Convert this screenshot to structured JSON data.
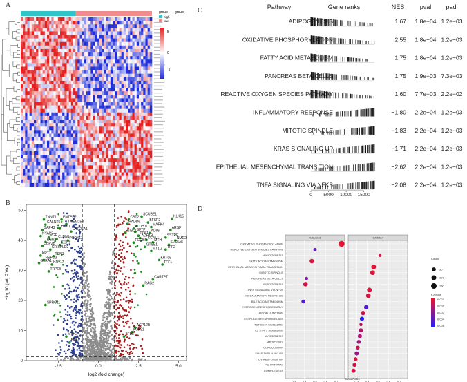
{
  "panels": {
    "A": "A",
    "B": "B",
    "C": "C",
    "D": "D"
  },
  "heatmap": {
    "legend_title": "group",
    "groups": [
      {
        "name": "high",
        "color": "#2EC4C8"
      },
      {
        "name": "low",
        "color": "#F08C8C"
      }
    ],
    "scale_ticks": [
      "5",
      "0",
      "-5"
    ],
    "colors": {
      "high": "#E32121",
      "mid": "#FFFFFF",
      "low": "#1F2DD8"
    }
  },
  "chart_data": [
    {
      "type": "table",
      "panel": "C",
      "headers": [
        "Pathway",
        "Gene ranks",
        "NES",
        "pval",
        "padj"
      ],
      "rows": [
        {
          "pathway": "ADIPOGENESIS",
          "nes": "1.67",
          "pval": "1.8e−04",
          "padj": "1.2e−03"
        },
        {
          "pathway": "OXIDATIVE PHOSPHORYLATION",
          "nes": "2.55",
          "pval": "1.8e−04",
          "padj": "1.2e−03"
        },
        {
          "pathway": "FATTY ACID METABOLISM",
          "nes": "1.75",
          "pval": "1.8e−04",
          "padj": "1.2e−03"
        },
        {
          "pathway": "PANCREAS BETA CELLS",
          "nes": "1.75",
          "pval": "1.9e−03",
          "padj": "7.3e−03"
        },
        {
          "pathway": "REACTIVE OXYGEN SPECIES PATHWAY",
          "nes": "1.60",
          "pval": "7.7e−03",
          "padj": "2.2e−02"
        },
        {
          "pathway": "INFLAMMATORY RESPONSE",
          "nes": "−1.80",
          "pval": "2.2e−04",
          "padj": "1.2e−03"
        },
        {
          "pathway": "MITOTIC SPINDLE",
          "nes": "−1.83",
          "pval": "2.2e−04",
          "padj": "1.2e−03"
        },
        {
          "pathway": "KRAS SIGNALING UP",
          "nes": "−1.71",
          "pval": "2.2e−04",
          "padj": "1.2e−03"
        },
        {
          "pathway": "EPITHELIAL MESENCHYMAL TRANSITION",
          "nes": "−2.62",
          "pval": "2.2e−04",
          "padj": "1.2e−03"
        },
        {
          "pathway": "TNFA SIGNALING VIA NFKB",
          "nes": "−2.08",
          "pval": "2.2e−04",
          "padj": "1.2e−03"
        }
      ],
      "rank_axis": {
        "ticks": [
          0,
          5000,
          10000,
          15000
        ],
        "range": [
          0,
          18000
        ]
      }
    },
    {
      "type": "scatter",
      "panel": "B",
      "xlabel": "log2 (fold change)",
      "ylabel": "−log10 (adj.P.Val)",
      "xlim": [
        -4.5,
        5.5
      ],
      "ylim": [
        0,
        52
      ],
      "xticks": [
        -2.5,
        0.0,
        2.5,
        5.0
      ],
      "xtick_labels": [
        "-2.5",
        "0.0",
        "2.5",
        "5.0"
      ],
      "yticks": [
        0,
        10,
        20,
        30,
        40,
        50
      ],
      "fc_cutoff": [
        -1,
        1
      ],
      "p_cutoff": 1.3,
      "colors": {
        "up": "#A31A1A",
        "down": "#2E3F8F",
        "ns": "#8C8C8C",
        "labeled": "#1F8A1F"
      },
      "labeled_genes": [
        {
          "gene": "TNNT1",
          "x": -3.4,
          "y": 47
        },
        {
          "gene": "GALNT5",
          "x": -3.3,
          "y": 45.3
        },
        {
          "gene": "GAP43",
          "x": -3.5,
          "y": 43.5
        },
        {
          "gene": "ENTPD2",
          "x": -2.3,
          "y": 47
        },
        {
          "gene": "TMEM158",
          "x": -2.0,
          "y": 45.5
        },
        {
          "gene": "HES1",
          "x": -2.4,
          "y": 44
        },
        {
          "gene": "CYP26A1",
          "x": -1.7,
          "y": 43
        },
        {
          "gene": "NYAP2",
          "x": -3.6,
          "y": 41.5
        },
        {
          "gene": "VGF",
          "x": -3.1,
          "y": 41
        },
        {
          "gene": "CLDN1",
          "x": -2.6,
          "y": 40.5
        },
        {
          "gene": "PODXL2",
          "x": -1.9,
          "y": 40
        },
        {
          "gene": "EGR3",
          "x": -3.3,
          "y": 39.5
        },
        {
          "gene": "EGR1",
          "x": -2.4,
          "y": 38.5
        },
        {
          "gene": "OBP2B",
          "x": -3.5,
          "y": 38.2
        },
        {
          "gene": "CRISPLD2",
          "x": -3.0,
          "y": 37
        },
        {
          "gene": "KRT7",
          "x": -3.6,
          "y": 35
        },
        {
          "gene": "TCN1",
          "x": -2.8,
          "y": 34.8
        },
        {
          "gene": "RSPO3",
          "x": -3.4,
          "y": 33.5
        },
        {
          "gene": "GLRA1",
          "x": -3.7,
          "y": 32.5
        },
        {
          "gene": "KRT17",
          "x": -2.9,
          "y": 32
        },
        {
          "gene": "TRPC5",
          "x": -3.1,
          "y": 29.7
        },
        {
          "gene": "SPRG11",
          "x": -3.3,
          "y": 18.5
        },
        {
          "gene": "MYH2",
          "x": -2.0,
          "y": 8
        },
        {
          "gene": "BRL1",
          "x": -1.8,
          "y": 6
        },
        {
          "gene": "SCUBE1",
          "x": 2.7,
          "y": 48
        },
        {
          "gene": "KLK15",
          "x": 4.6,
          "y": 47.3
        },
        {
          "gene": "CST2",
          "x": 1.9,
          "y": 47
        },
        {
          "gene": "BFSP2",
          "x": 3.1,
          "y": 46
        },
        {
          "gene": "RADD6",
          "x": 1.8,
          "y": 45.5
        },
        {
          "gene": "MAPK4",
          "x": 3.3,
          "y": 44.5
        },
        {
          "gene": "ALDH1L1",
          "x": 2.2,
          "y": 44
        },
        {
          "gene": "ARSF",
          "x": 4.5,
          "y": 43.5
        },
        {
          "gene": "SFTP",
          "x": 2.3,
          "y": 42.8
        },
        {
          "gene": "ADIG",
          "x": 3.2,
          "y": 42.5
        },
        {
          "gene": "NIBOL",
          "x": 1.7,
          "y": 42.5
        },
        {
          "gene": "TPS1",
          "x": 2.5,
          "y": 41.6
        },
        {
          "gene": "SSTRE",
          "x": 4.2,
          "y": 41
        },
        {
          "gene": "ADH1B",
          "x": 2.6,
          "y": 40.8
        },
        {
          "gene": "KCNL1",
          "x": 3.0,
          "y": 40.2
        },
        {
          "gene": "NMD2",
          "x": 4.8,
          "y": 40
        },
        {
          "gene": "MTH",
          "x": 3.4,
          "y": 39.4
        },
        {
          "gene": "FCGBP",
          "x": 2.2,
          "y": 39.3
        },
        {
          "gene": "SLC5A5",
          "x": 4.4,
          "y": 38.6
        },
        {
          "gene": "GTSE1",
          "x": 2.9,
          "y": 37.9
        },
        {
          "gene": "TFF2",
          "x": 4.2,
          "y": 37
        },
        {
          "gene": "MT1G",
          "x": 3.3,
          "y": 36.5
        },
        {
          "gene": "KRT05",
          "x": 3.8,
          "y": 33.5
        },
        {
          "gene": "TFF1",
          "x": 4.0,
          "y": 32
        },
        {
          "gene": "CARTPT",
          "x": 3.4,
          "y": 27
        },
        {
          "gene": "RAG2",
          "x": 2.8,
          "y": 25
        },
        {
          "gene": "AGP12B",
          "x": 2.3,
          "y": 11
        },
        {
          "gene": "FGF31",
          "x": 2.1,
          "y": 9.5
        },
        {
          "gene": "FFB3",
          "x": 1.6,
          "y": 8
        }
      ]
    },
    {
      "type": "scatter",
      "panel": "D",
      "facets": [
        "Activated",
        "Inhibited"
      ],
      "xlabel": "GeneRatio",
      "xticks": [
        "0.3",
        "0.4",
        "0.5",
        "0.6",
        "0.7"
      ],
      "xlim": [
        0.22,
        0.78
      ],
      "size_legend_title": "Count",
      "size_legend": [
        "50",
        "100",
        "150"
      ],
      "color_legend_title": "p.adjust",
      "color_legend_ticks": [
        "0.001",
        "0.002",
        "0.003",
        "0.004",
        "0.005"
      ],
      "categories": [
        "OXIDATIVE PHOSPHORYLATION",
        "REACTIVE OXYGEN SPECIES PATHWAY",
        "ANGIOGENESIS",
        "FATTY ACID METABOLISM",
        "EPITHELIAL MESENCHYMAL TRANSITION",
        "MITOTIC SPINDLE",
        "PANCREAS BETA CELLS",
        "ADIPOGENESIS",
        "TNFA SIGNALING VIA NFKB",
        "INFLAMMATORY RESPONSE",
        "BILE ACID METABOLISM",
        "ESTROGEN RESPONSE EARLY",
        "APICAL JUNCTION",
        "ESTROGEN RESPONSE LATE",
        "TGF BETA SIGNALING",
        "IL2 STAT5 SIGNALING",
        "MYOGENESIS",
        "APOPTOSIS",
        "COAGULATION",
        "KRAS SIGNALING UP",
        "UV RESPONSE DN",
        "P53 PATHWAY",
        "COMPLEMENT"
      ],
      "points": [
        {
          "facet": 0,
          "cat": "OXIDATIVE PHOSPHORYLATION",
          "x": 0.75,
          "count": 180,
          "padj": 0.0005
        },
        {
          "facet": 0,
          "cat": "REACTIVE OXYGEN SPECIES PATHWAY",
          "x": 0.5,
          "count": 25,
          "padj": 0.0035
        },
        {
          "facet": 0,
          "cat": "FATTY ACID METABOLISM",
          "x": 0.47,
          "count": 80,
          "padj": 0.0008
        },
        {
          "facet": 0,
          "cat": "PANCREAS BETA CELLS",
          "x": 0.42,
          "count": 20,
          "padj": 0.003
        },
        {
          "facet": 0,
          "cat": "ADIPOGENESIS",
          "x": 0.41,
          "count": 85,
          "padj": 0.0009
        },
        {
          "facet": 0,
          "cat": "BILE ACID METABOLISM",
          "x": 0.39,
          "count": 45,
          "padj": 0.004
        },
        {
          "facet": 1,
          "cat": "ANGIOGENESIS",
          "x": 0.52,
          "count": 20,
          "padj": 0.001
        },
        {
          "facet": 1,
          "cat": "EPITHELIAL MESENCHYMAL TRANSITION",
          "x": 0.46,
          "count": 100,
          "padj": 0.0006
        },
        {
          "facet": 1,
          "cat": "MITOTIC SPINDLE",
          "x": 0.45,
          "count": 90,
          "padj": 0.0007
        },
        {
          "facet": 1,
          "cat": "TNFA SIGNALING VIA NFKB",
          "x": 0.42,
          "count": 90,
          "padj": 0.0008
        },
        {
          "facet": 1,
          "cat": "INFLAMMATORY RESPONSE",
          "x": 0.41,
          "count": 85,
          "padj": 0.0009
        },
        {
          "facet": 1,
          "cat": "ESTROGEN RESPONSE EARLY",
          "x": 0.39,
          "count": 70,
          "padj": 0.004
        },
        {
          "facet": 1,
          "cat": "APICAL JUNCTION",
          "x": 0.36,
          "count": 70,
          "padj": 0.0012
        },
        {
          "facet": 1,
          "cat": "ESTROGEN RESPONSE LATE",
          "x": 0.35,
          "count": 65,
          "padj": 0.005
        },
        {
          "facet": 1,
          "cat": "TGF BETA SIGNALING",
          "x": 0.34,
          "count": 20,
          "padj": 0.0015
        },
        {
          "facet": 1,
          "cat": "IL2 STAT5 SIGNALING",
          "x": 0.34,
          "count": 60,
          "padj": 0.0018
        },
        {
          "facet": 1,
          "cat": "MYOGENESIS",
          "x": 0.33,
          "count": 60,
          "padj": 0.002
        },
        {
          "facet": 1,
          "cat": "APOPTOSIS",
          "x": 0.32,
          "count": 50,
          "padj": 0.0022
        },
        {
          "facet": 1,
          "cat": "COAGULATION",
          "x": 0.31,
          "count": 45,
          "padj": 0.0012
        },
        {
          "facet": 1,
          "cat": "KRAS SIGNALING UP",
          "x": 0.3,
          "count": 60,
          "padj": 0.0025
        },
        {
          "facet": 1,
          "cat": "UV RESPONSE DN",
          "x": 0.29,
          "count": 45,
          "padj": 0.0008
        },
        {
          "facet": 1,
          "cat": "P53 PATHWAY",
          "x": 0.28,
          "count": 55,
          "padj": 0.001
        },
        {
          "facet": 1,
          "cat": "COMPLEMENT",
          "x": 0.27,
          "count": 55,
          "padj": 0.001
        }
      ]
    }
  ]
}
